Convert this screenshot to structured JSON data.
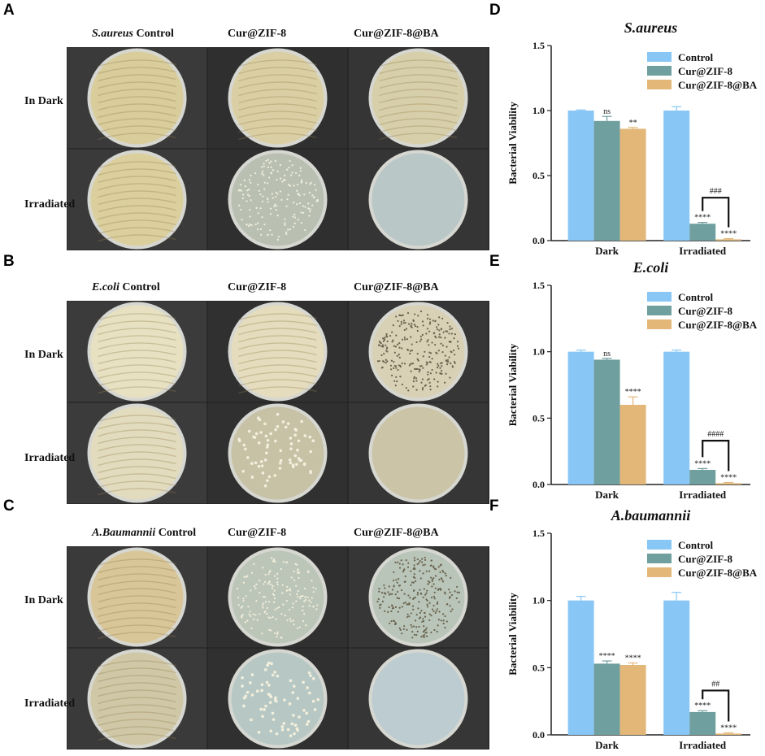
{
  "panels": {
    "plates": [
      {
        "letter": "A",
        "headers": [
          {
            "italic": "S.aureus",
            "plain": " Control"
          },
          {
            "italic": "",
            "plain": "Cur@ZIF-8"
          },
          {
            "italic": "",
            "plain": "Cur@ZIF-8@BA"
          }
        ],
        "rows": [
          "In Dark",
          "Irradiated"
        ],
        "bg": [
          "#3a3a3a",
          "#2f2f2f",
          "#353535"
        ],
        "plates": [
          [
            {
              "fill": "#d9cd9c",
              "type": "lawn"
            },
            {
              "fill": "#dacfa4",
              "type": "lawn"
            },
            {
              "fill": "#d7cfaa",
              "type": "lawn"
            }
          ],
          [
            {
              "fill": "#dbcf9e",
              "type": "lawn"
            },
            {
              "fill": "#b9c0b2",
              "type": "dots"
            },
            {
              "fill": "#b9c7c7",
              "type": "clear"
            }
          ]
        ]
      },
      {
        "letter": "B",
        "headers": [
          {
            "italic": "E.coli",
            "plain": " Control"
          },
          {
            "italic": "",
            "plain": "Cur@ZIF-8"
          },
          {
            "italic": "",
            "plain": "Cur@ZIF-8@BA"
          }
        ],
        "rows": [
          "In Dark",
          "Irradiated"
        ],
        "bg": [
          "#3b3b3b",
          "#303030",
          "#363636"
        ],
        "plates": [
          [
            {
              "fill": "#e7e1c2",
              "type": "lawn"
            },
            {
              "fill": "#e4dcbc",
              "type": "lawn"
            },
            {
              "fill": "#d8d1b6",
              "type": "many"
            }
          ],
          [
            {
              "fill": "#e2dbbd",
              "type": "lawn"
            },
            {
              "fill": "#c7c1a6",
              "type": "colonies"
            },
            {
              "fill": "#cbc4a6",
              "type": "clear"
            }
          ]
        ]
      },
      {
        "letter": "C",
        "headers": [
          {
            "italic": "A.Baumannii",
            "plain": " Control"
          },
          {
            "italic": "",
            "plain": "Cur@ZIF-8"
          },
          {
            "italic": "",
            "plain": "Cur@ZIF-8@BA"
          }
        ],
        "rows": [
          "In Dark",
          "Irradiated"
        ],
        "bg": [
          "#3a3a3a",
          "#303030",
          "#363636"
        ],
        "plates": [
          [
            {
              "fill": "#d8c698",
              "type": "lawn"
            },
            {
              "fill": "#bcc6b8",
              "type": "dots"
            },
            {
              "fill": "#b9c5b8",
              "type": "many"
            }
          ],
          [
            {
              "fill": "#cfc7a6",
              "type": "lawn"
            },
            {
              "fill": "#b7c8c4",
              "type": "colonies"
            },
            {
              "fill": "#bcccd0",
              "type": "clear"
            }
          ]
        ]
      }
    ]
  },
  "legend_labels": [
    "Control",
    "Cur@ZIF-8",
    "Cur@ZIF-8@BA"
  ],
  "colors": {
    "control": "#88c6f5",
    "zif": "#6f9f9f",
    "ba": "#e2b778"
  },
  "chart_data": [
    {
      "type": "bar",
      "panel": "D",
      "title": "S.aureus",
      "ylabel": "Bacterial Viability",
      "categories": [
        "Dark",
        "Irradiated"
      ],
      "ylim": [
        0,
        1.5
      ],
      "yticks": [
        "0.0",
        "0.5",
        "1.0",
        "1.5"
      ],
      "series": [
        {
          "name": "Control",
          "values": [
            1.0,
            1.0
          ],
          "errors": [
            0.005,
            0.03
          ]
        },
        {
          "name": "Cur@ZIF-8",
          "values": [
            0.92,
            0.13
          ],
          "errors": [
            0.035,
            0.01
          ]
        },
        {
          "name": "Cur@ZIF-8@BA",
          "values": [
            0.86,
            0.01
          ],
          "errors": [
            0.01,
            0.005
          ]
        }
      ],
      "annotations": [
        {
          "group": 0,
          "series": 1,
          "text": "ns"
        },
        {
          "group": 0,
          "series": 2,
          "text": "**"
        },
        {
          "group": 1,
          "series": 1,
          "text": "****"
        },
        {
          "group": 1,
          "series": 2,
          "text": "****"
        }
      ],
      "bracket": {
        "group": 1,
        "text": "###"
      }
    },
    {
      "type": "bar",
      "panel": "E",
      "title": "E.coli",
      "ylabel": "Bacterial Viability",
      "categories": [
        "Dark",
        "Irradiated"
      ],
      "ylim": [
        0,
        1.5
      ],
      "yticks": [
        "0.0",
        "0.5",
        "1.0",
        "1.5"
      ],
      "series": [
        {
          "name": "Control",
          "values": [
            1.0,
            1.0
          ],
          "errors": [
            0.012,
            0.012
          ]
        },
        {
          "name": "Cur@ZIF-8",
          "values": [
            0.94,
            0.11
          ],
          "errors": [
            0.01,
            0.01
          ]
        },
        {
          "name": "Cur@ZIF-8@BA",
          "values": [
            0.6,
            0.01
          ],
          "errors": [
            0.06,
            0.005
          ]
        }
      ],
      "annotations": [
        {
          "group": 0,
          "series": 1,
          "text": "ns"
        },
        {
          "group": 0,
          "series": 2,
          "text": "****"
        },
        {
          "group": 1,
          "series": 1,
          "text": "****"
        },
        {
          "group": 1,
          "series": 2,
          "text": "****"
        }
      ],
      "bracket": {
        "group": 1,
        "text": "####"
      }
    },
    {
      "type": "bar",
      "panel": "F",
      "title": "A.baumannii",
      "ylabel": "Bacterial Viability",
      "categories": [
        "Dark",
        "Irradiated"
      ],
      "ylim": [
        0,
        1.5
      ],
      "yticks": [
        "0.0",
        "0.5",
        "1.0",
        "1.5"
      ],
      "series": [
        {
          "name": "Control",
          "values": [
            1.0,
            1.0
          ],
          "errors": [
            0.03,
            0.06
          ]
        },
        {
          "name": "Cur@ZIF-8",
          "values": [
            0.53,
            0.17
          ],
          "errors": [
            0.02,
            0.01
          ]
        },
        {
          "name": "Cur@ZIF-8@BA",
          "values": [
            0.52,
            0.01
          ],
          "errors": [
            0.015,
            0.005
          ]
        }
      ],
      "annotations": [
        {
          "group": 0,
          "series": 1,
          "text": "****"
        },
        {
          "group": 0,
          "series": 2,
          "text": "****"
        },
        {
          "group": 1,
          "series": 1,
          "text": "****"
        },
        {
          "group": 1,
          "series": 2,
          "text": "****"
        }
      ],
      "bracket": {
        "group": 1,
        "text": "##"
      }
    }
  ]
}
